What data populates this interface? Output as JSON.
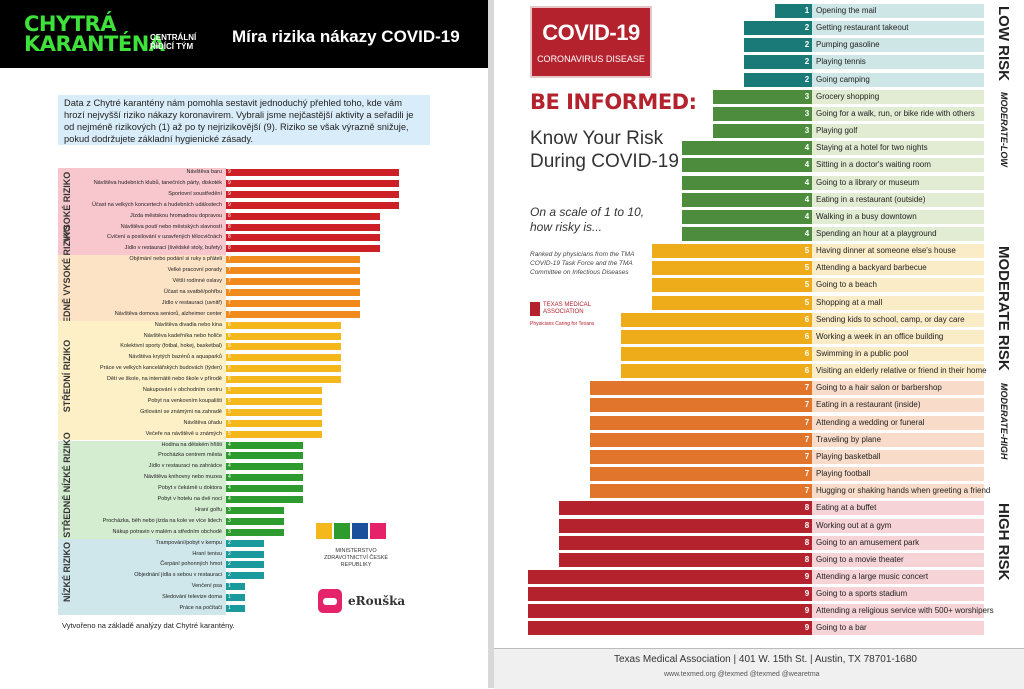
{
  "left": {
    "logo_line1": "CHYTRÁ",
    "logo_line2": "KARANTÉNA",
    "logo_sub": "CENTRÁLNÍ ŘÍDÍCÍ TÝM",
    "title": "Míra rizika nákazy COVID-19",
    "intro": "Data z Chytré karantény nám pomohla sestavit jednoduchý přehled toho, kde vám hrozí nejvyšší riziko nákazy koronavirem. Vybrali jsme nejčastější aktivity a seřadili je od nejméně rizikových (1) až po ty nejrizikovější (9). Riziko se však výrazně snižuje, pokud dodržujete základní hygienické zásady.",
    "footnote": "Vytvořeno na základě analýzy dat Chytré karantény.",
    "ministry": "MINISTERSTVO ZDRAVOTNICTVÍ ČESKÉ REPUBLIKY",
    "erouska": "eRouška"
  },
  "right": {
    "box_title": "COVID-19",
    "box_sub": "CORONAVIRUS DISEASE",
    "be_informed": "BE INFORMED:",
    "know": "Know Your Risk During COVID-19",
    "scale": "On a scale of 1 to 10, how risky is...",
    "ranked": "Ranked by physicians from the TMA COVID-19 Task Force and the TMA Committee on Infectious Diseases",
    "tma_name": "TEXAS MEDICAL ASSOCIATION",
    "tma_sub": "Physicians Caring for Texans",
    "footer1": "Texas Medical Association  |  401 W. 15th St.  |  Austin, TX 78701-1680",
    "footer2": "www.texmed.org        @texmed        @texmed        @wearetma"
  },
  "chart_data": [
    {
      "type": "bar",
      "orientation": "horizontal",
      "title": "Míra rizika nákazy COVID-19",
      "xlim": [
        0,
        9
      ],
      "groups": [
        {
          "name": "VYSOKÉ RIZIKO",
          "color": "#cc1f26",
          "band_color": "#f7c7cd",
          "rows": [
            {
              "label": "Návštěva baru",
              "value": 9
            },
            {
              "label": "Návštěva hudebních klubů, tanečních párty, diskoték",
              "value": 9
            },
            {
              "label": "Sportovní soustředění",
              "value": 9
            },
            {
              "label": "Účast na velkých koncertech a hudebních událostech",
              "value": 9
            },
            {
              "label": "Jízda městskou hromadnou dopravou",
              "value": 8
            },
            {
              "label": "Návštěva poutí nebo městských slavností",
              "value": 8
            },
            {
              "label": "Cvičení a posilování v uzavřených tělocvičnách",
              "value": 8
            },
            {
              "label": "Jídlo v restauraci (švédské stoly, bufety)",
              "value": 8
            }
          ]
        },
        {
          "name": "STŘEDNĚ VYSOKÉ RIZIKO",
          "color": "#f08a1c",
          "band_color": "#fde3c5",
          "rows": [
            {
              "label": "Objímání nebo podání si ruky s přáteli",
              "value": 7
            },
            {
              "label": "Velké pracovní porady",
              "value": 7
            },
            {
              "label": "Větší rodinné oslavy",
              "value": 7
            },
            {
              "label": "Účast na svatbě/pohřbu",
              "value": 7
            },
            {
              "label": "Jídlo v restauraci (uvnitř)",
              "value": 7
            },
            {
              "label": "Návštěva domova seniorů, alzheimer center",
              "value": 7
            }
          ]
        },
        {
          "name": "STŘEDNÍ RIZIKO",
          "color": "#f5b81c",
          "band_color": "#fdf0c6",
          "rows": [
            {
              "label": "Návštěva divadla nebo kina",
              "value": 6
            },
            {
              "label": "Návštěva kadeřníka nebo holiče",
              "value": 6
            },
            {
              "label": "Kolektivní sporty (fotbal, hokej, basketbal)",
              "value": 6
            },
            {
              "label": "Návštěva krytých bazénů a aquaparků",
              "value": 6
            },
            {
              "label": "Práce ve velkých kancelářských budovách (týden)",
              "value": 6
            },
            {
              "label": "Děti ve škole, na internátě nebo škole v přírodě",
              "value": 6
            },
            {
              "label": "Nakupování v obchodním centru",
              "value": 5
            },
            {
              "label": "Pobyt na venkovním koupališti",
              "value": 5
            },
            {
              "label": "Grilování se známými na zahradě",
              "value": 5
            },
            {
              "label": "Návštěva úřadu",
              "value": 5
            },
            {
              "label": "Večeře na návštěvě u známých",
              "value": 5
            }
          ]
        },
        {
          "name": "STŘEDNĚ NÍZKÉ RIZIKO",
          "color": "#2e9b2e",
          "band_color": "#d4ecd0",
          "rows": [
            {
              "label": "Hodina na dětském hřišti",
              "value": 4
            },
            {
              "label": "Procházka centrem města",
              "value": 4
            },
            {
              "label": "Jídlo v restauraci na zahrádce",
              "value": 4
            },
            {
              "label": "Návštěva knihovny nebo muzea",
              "value": 4
            },
            {
              "label": "Pobyt v čekárně u doktora",
              "value": 4
            },
            {
              "label": "Pobyt v hotelu na dvě noci",
              "value": 4
            },
            {
              "label": "Hraní golfu",
              "value": 3
            },
            {
              "label": "Procházka, běh nebo jízda na kole ve více lidech",
              "value": 3
            },
            {
              "label": "Nákup potravin v malém a středním obchodě",
              "value": 3
            }
          ]
        },
        {
          "name": "NÍZKÉ RIZIKO",
          "color": "#1a9a9c",
          "band_color": "#cfe7ea",
          "rows": [
            {
              "label": "Trampování/pobyt v kempu",
              "value": 2
            },
            {
              "label": "Hraní tenisu",
              "value": 2
            },
            {
              "label": "Čerpání pohonných hmot",
              "value": 2
            },
            {
              "label": "Objednání jídla s sebou v restauraci",
              "value": 2
            },
            {
              "label": "Venčení psa",
              "value": 1
            },
            {
              "label": "Sledování televize doma",
              "value": 1
            },
            {
              "label": "Práce na počítači",
              "value": 1
            }
          ]
        }
      ]
    },
    {
      "type": "bar",
      "orientation": "horizontal",
      "title": "Know Your Risk During COVID-19",
      "xlim": [
        0,
        9
      ],
      "categories": [
        {
          "name": "LOW RISK",
          "color": "#1a7a78",
          "band_color": "#cfe6e6",
          "rows": [
            {
              "label": "Opening the mail",
              "value": 1
            },
            {
              "label": "Getting restaurant takeout",
              "value": 2
            },
            {
              "label": "Pumping gasoline",
              "value": 2
            },
            {
              "label": "Playing tennis",
              "value": 2
            },
            {
              "label": "Going camping",
              "value": 2
            }
          ]
        },
        {
          "name": "MODERATE-LOW",
          "color": "#4d8c3d",
          "band_color": "#e2ecd3",
          "rows": [
            {
              "label": "Grocery shopping",
              "value": 3
            },
            {
              "label": "Going for a walk, run, or bike ride with others",
              "value": 3
            },
            {
              "label": "Playing golf",
              "value": 3
            },
            {
              "label": "Staying at a hotel for two nights",
              "value": 4
            },
            {
              "label": "Sitting in a doctor's waiting room",
              "value": 4
            },
            {
              "label": "Going to a library or museum",
              "value": 4
            },
            {
              "label": "Eating in a restaurant (outside)",
              "value": 4
            },
            {
              "label": "Walking in a busy downtown",
              "value": 4
            },
            {
              "label": "Spending an hour at a playground",
              "value": 4
            }
          ]
        },
        {
          "name": "MODERATE RISK",
          "color": "#eeab1a",
          "band_color": "#fbecc8",
          "rows": [
            {
              "label": "Having dinner at someone else's house",
              "value": 5
            },
            {
              "label": "Attending a backyard barbecue",
              "value": 5
            },
            {
              "label": "Going to a beach",
              "value": 5
            },
            {
              "label": "Shopping at a mall",
              "value": 5
            },
            {
              "label": "Sending kids to school, camp, or day care",
              "value": 6
            },
            {
              "label": "Working a week in an office building",
              "value": 6
            },
            {
              "label": "Swimming in a public pool",
              "value": 6
            },
            {
              "label": "Visiting an elderly relative or friend in their home",
              "value": 6
            }
          ]
        },
        {
          "name": "MODERATE-HIGH",
          "color": "#e2752c",
          "band_color": "#f8dcc9",
          "rows": [
            {
              "label": "Going to a hair salon or barbershop",
              "value": 7
            },
            {
              "label": "Eating in a restaurant (inside)",
              "value": 7
            },
            {
              "label": "Attending a wedding or funeral",
              "value": 7
            },
            {
              "label": "Traveling by plane",
              "value": 7
            },
            {
              "label": "Playing basketball",
              "value": 7
            },
            {
              "label": "Playing football",
              "value": 7
            },
            {
              "label": "Hugging or shaking hands when greeting a friend",
              "value": 7
            }
          ]
        },
        {
          "name": "HIGH RISK",
          "color": "#b3222d",
          "band_color": "#f5d3d6",
          "rows": [
            {
              "label": "Eating at a buffet",
              "value": 8
            },
            {
              "label": "Working out at a gym",
              "value": 8
            },
            {
              "label": "Going to an amusement park",
              "value": 8
            },
            {
              "label": "Going to a movie theater",
              "value": 8
            },
            {
              "label": "Attending a large music concert",
              "value": 9
            },
            {
              "label": "Going to a sports stadium",
              "value": 9
            },
            {
              "label": "Attending a religious service with 500+ worshipers",
              "value": 9
            },
            {
              "label": "Going to a bar",
              "value": 9
            }
          ]
        }
      ]
    }
  ]
}
